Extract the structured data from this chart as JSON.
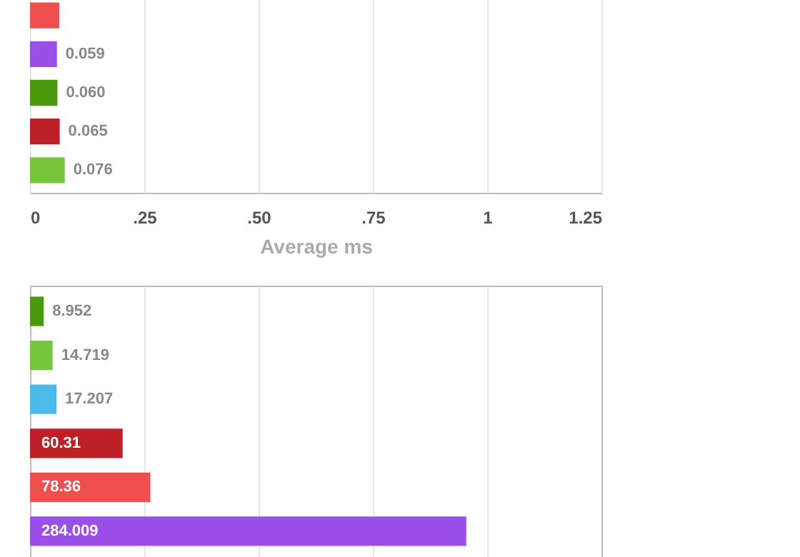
{
  "chart_data": [
    {
      "type": "bar",
      "orientation": "horizontal",
      "xlabel": "Average ms",
      "categories": [
        null,
        null,
        null,
        null,
        null
      ],
      "values": [
        0.064,
        0.059,
        0.06,
        0.065,
        0.076
      ],
      "colors": [
        "#ee4f4f",
        "#9b4fe9",
        "#4a9a0e",
        "#bd2026",
        "#76c63b"
      ],
      "value_labels": [
        null,
        "0.059",
        "0.060",
        "0.065",
        "0.076"
      ],
      "xlim": [
        0,
        1.25
      ],
      "xticks": [
        0,
        {
          "value": 0.25,
          "label": ".25"
        },
        {
          "value": 0.5,
          "label": ".50"
        },
        {
          "value": 0.75,
          "label": ".75"
        },
        1,
        1.25
      ],
      "grid": "x"
    },
    {
      "type": "bar",
      "orientation": "horizontal",
      "categories": [
        null,
        null,
        null,
        null,
        null,
        null
      ],
      "values": [
        8.952,
        14.719,
        17.207,
        60.31,
        78.36,
        284.009
      ],
      "colors": [
        "#4a9a0e",
        "#76c63b",
        "#4dbbe9",
        "#bd2026",
        "#ee4f4f",
        "#9b4fe9"
      ],
      "data_labels": true,
      "xlim": [
        0,
        372
      ],
      "xticks": [
        {
          "value": 74.4,
          "label": null
        },
        {
          "value": 148.8,
          "label": null
        },
        {
          "value": 223.2,
          "label": null
        },
        {
          "value": 297.6,
          "label": null
        }
      ],
      "grid": "x"
    }
  ]
}
